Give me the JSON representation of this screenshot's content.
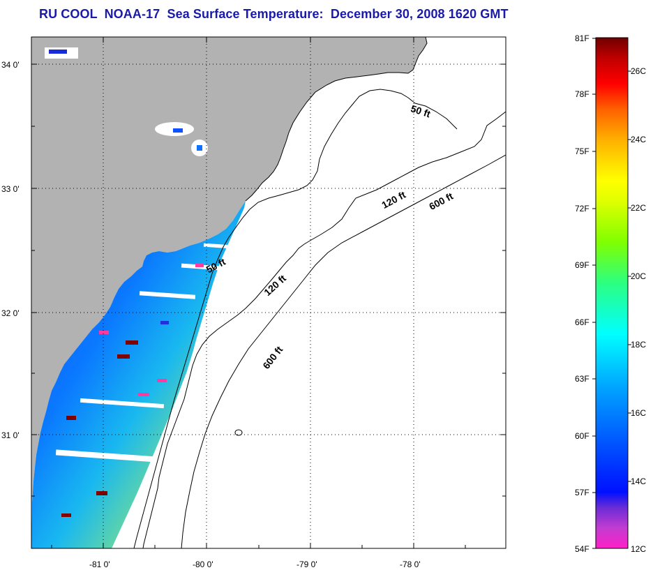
{
  "title": "RU COOL  NOAA-17  Sea Surface Temperature:  December 30, 2008 1620 GMT",
  "map": {
    "lat_ticks": [
      "34 0'",
      "33 0'",
      "32 0'",
      "31 0'"
    ],
    "lon_ticks": [
      "-81 0'",
      "-80 0'",
      "-79 0'",
      "-78 0'"
    ],
    "contours": [
      {
        "label": "50 ft",
        "depth_ft": 50
      },
      {
        "label": "50 ft",
        "depth_ft": 50
      },
      {
        "label": "120 ft",
        "depth_ft": 120
      },
      {
        "label": "120 ft",
        "depth_ft": 120
      },
      {
        "label": "600 ft",
        "depth_ft": 600
      },
      {
        "label": "600 ft",
        "depth_ft": 600
      }
    ],
    "colors": {
      "land": "#b2b2b2",
      "water": "#ffffff",
      "cloud": "#ffffff",
      "frame": "#000000"
    }
  },
  "colorbar": {
    "fahrenheit_labels": [
      "81F",
      "78F",
      "75F",
      "72F",
      "69F",
      "66F",
      "63F",
      "60F",
      "57F",
      "54F"
    ],
    "celsius_labels": [
      "26C",
      "24C",
      "22C",
      "20C",
      "18C",
      "16C",
      "14C",
      "12C"
    ],
    "stops": [
      "#ff1fc8",
      "#c23cd0",
      "#6a2cd6",
      "#0010ff",
      "#0050ff",
      "#00a8ff",
      "#00ffff",
      "#2cff80",
      "#80ff00",
      "#e0ff00",
      "#ffff00",
      "#ffb000",
      "#ff6000",
      "#ff0000",
      "#c00000",
      "#700000"
    ]
  }
}
